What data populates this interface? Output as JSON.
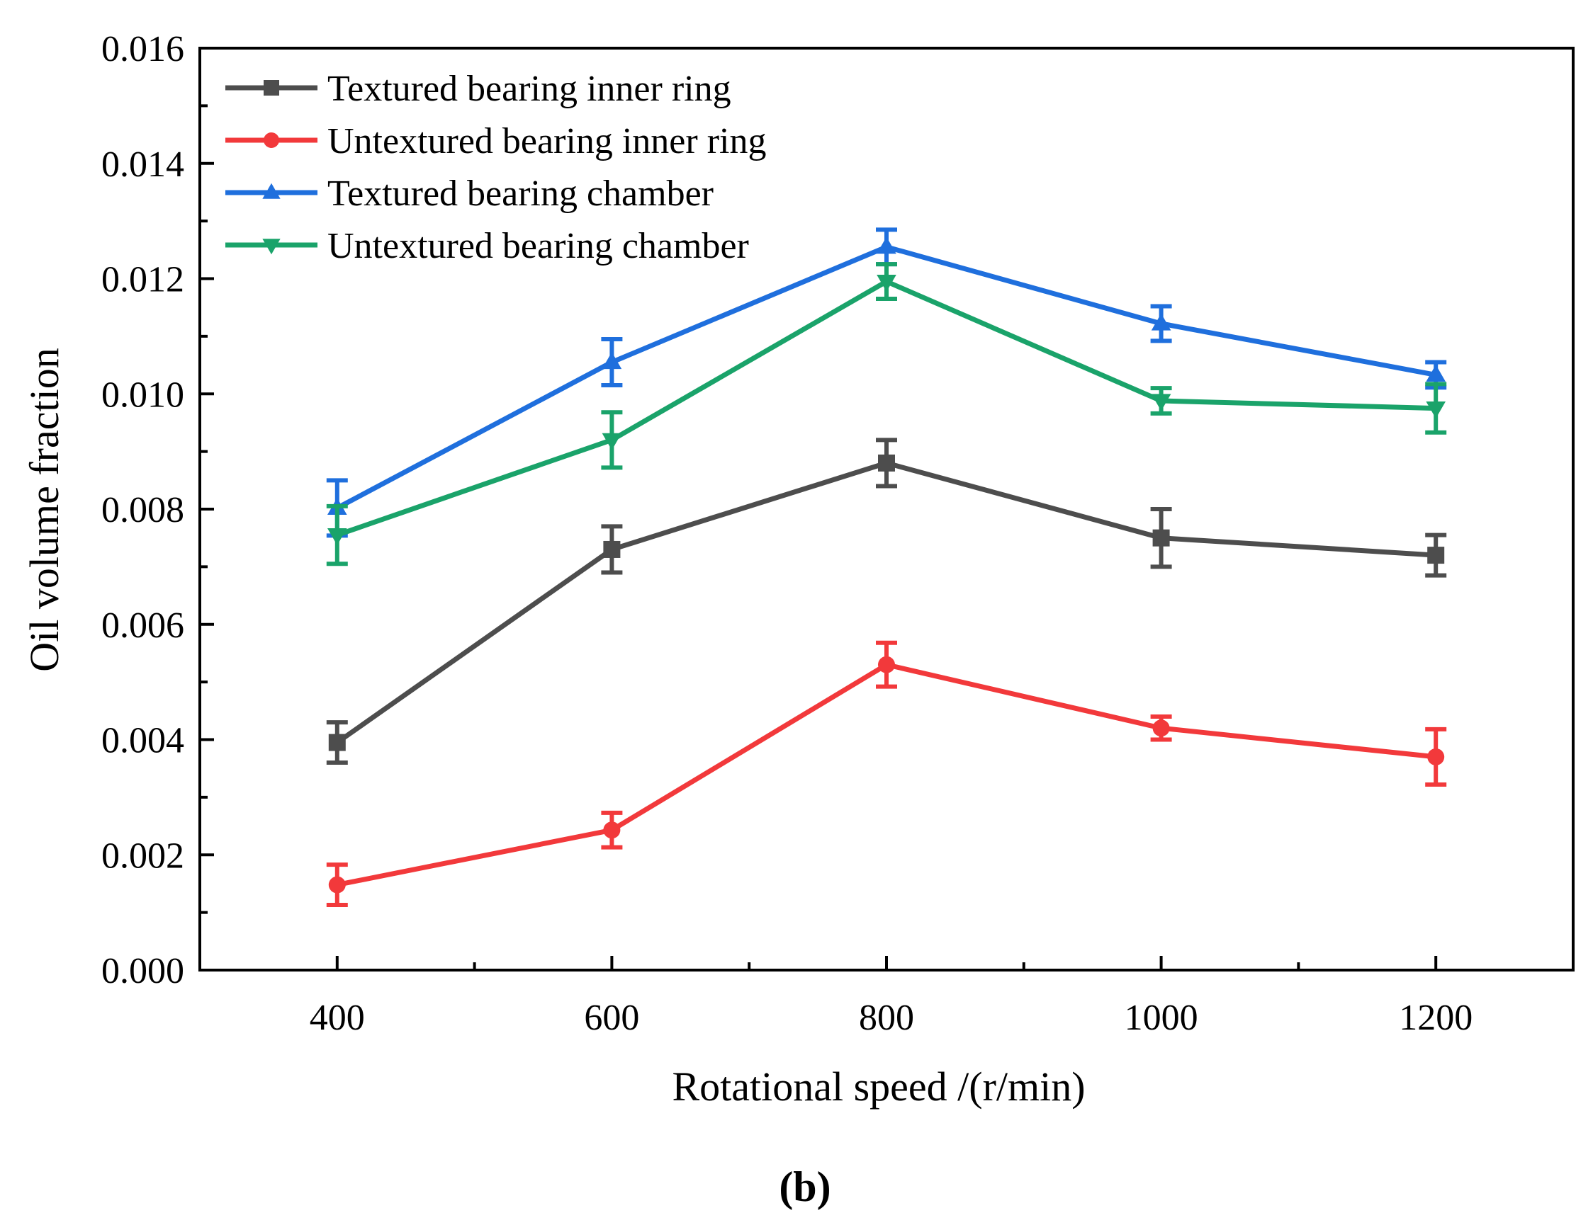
{
  "caption": "(b)",
  "chart_data": {
    "type": "line",
    "xlabel": "Rotational speed /(r/min)",
    "ylabel": "Oil volume fraction",
    "xlim": [
      300,
      1300
    ],
    "ylim": [
      0,
      0.016
    ],
    "x_ticks": [
      400,
      600,
      800,
      1000,
      1200
    ],
    "x_tick_labels": [
      "400",
      "600",
      "800",
      "1000",
      "1200"
    ],
    "y_ticks": [
      0,
      0.002,
      0.004,
      0.006,
      0.008,
      0.01,
      0.012,
      0.014,
      0.016
    ],
    "y_tick_labels": [
      "0.000",
      "0.002",
      "0.004",
      "0.006",
      "0.008",
      "0.010",
      "0.012",
      "0.014",
      "0.016"
    ],
    "grid": false,
    "legend_position": "top-left",
    "x": [
      400,
      600,
      800,
      1000,
      1200
    ],
    "series": [
      {
        "name": "Textured bearing inner ring",
        "color": "#4d4d4d",
        "marker": "square",
        "values": [
          0.00395,
          0.0073,
          0.0088,
          0.0075,
          0.0072
        ],
        "errors": [
          0.00035,
          0.0004,
          0.0004,
          0.0005,
          0.00035
        ]
      },
      {
        "name": "Untextured bearing inner ring",
        "color": "#f2393b",
        "marker": "circle",
        "values": [
          0.00148,
          0.00243,
          0.0053,
          0.0042,
          0.0037
        ],
        "errors": [
          0.00035,
          0.0003,
          0.00038,
          0.0002,
          0.00048
        ]
      },
      {
        "name": "Textured bearing chamber",
        "color": "#1f6fdd",
        "marker": "triangle-up",
        "values": [
          0.00802,
          0.01055,
          0.01255,
          0.01122,
          0.01033
        ],
        "errors": [
          0.00048,
          0.0004,
          0.0003,
          0.0003,
          0.00022
        ]
      },
      {
        "name": "Untextured bearing chamber",
        "color": "#1aa36a",
        "marker": "triangle-down",
        "values": [
          0.00755,
          0.0092,
          0.01195,
          0.00988,
          0.00975
        ],
        "errors": [
          0.0005,
          0.00048,
          0.0003,
          0.00022,
          0.00042
        ]
      }
    ]
  }
}
